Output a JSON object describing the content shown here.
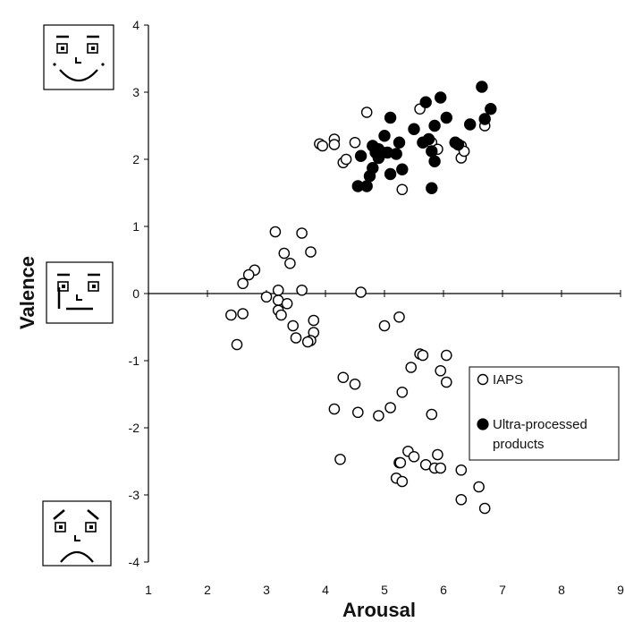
{
  "chart_data": {
    "type": "scatter",
    "xlabel": "Arousal",
    "ylabel": "Valence",
    "xlim": [
      1,
      9
    ],
    "ylim": [
      -4,
      4
    ],
    "x_ticks": [
      "1",
      "2",
      "3",
      "4",
      "5",
      "6",
      "7",
      "8",
      "9"
    ],
    "y_ticks": [
      "4",
      "3",
      "2",
      "1",
      "0",
      "-1",
      "-2",
      "-3",
      "-4"
    ],
    "grid": false,
    "axes_cross_at_zero": true,
    "legend": {
      "placement": "right"
    },
    "face_icons": [
      "happy-face-icon",
      "neutral-face-icon",
      "sad-face-icon"
    ],
    "series": [
      {
        "name": "IAPS",
        "marker": "open-circle",
        "color": "#000000",
        "points": [
          [
            4.7,
            2.7
          ],
          [
            5.6,
            2.75
          ],
          [
            3.9,
            2.23
          ],
          [
            3.95,
            2.2
          ],
          [
            4.15,
            2.3
          ],
          [
            4.15,
            2.22
          ],
          [
            4.3,
            1.95
          ],
          [
            4.35,
            2.0
          ],
          [
            4.5,
            2.25
          ],
          [
            5.0,
            2.1
          ],
          [
            5.3,
            1.55
          ],
          [
            5.8,
            2.25
          ],
          [
            5.9,
            2.15
          ],
          [
            6.3,
            2.2
          ],
          [
            6.3,
            2.02
          ],
          [
            6.35,
            2.12
          ],
          [
            6.7,
            2.5
          ],
          [
            3.15,
            0.92
          ],
          [
            3.6,
            0.9
          ],
          [
            3.3,
            0.6
          ],
          [
            3.75,
            0.62
          ],
          [
            3.4,
            0.45
          ],
          [
            2.8,
            0.35
          ],
          [
            2.7,
            0.28
          ],
          [
            2.6,
            0.15
          ],
          [
            3.2,
            0.05
          ],
          [
            3.6,
            0.05
          ],
          [
            4.6,
            0.02
          ],
          [
            3.0,
            -0.05
          ],
          [
            3.2,
            -0.1
          ],
          [
            3.35,
            -0.15
          ],
          [
            3.2,
            -0.25
          ],
          [
            3.25,
            -0.32
          ],
          [
            2.4,
            -0.32
          ],
          [
            2.6,
            -0.3
          ],
          [
            3.8,
            -0.4
          ],
          [
            5.25,
            -0.35
          ],
          [
            5.0,
            -0.48
          ],
          [
            3.45,
            -0.48
          ],
          [
            3.8,
            -0.58
          ],
          [
            3.5,
            -0.66
          ],
          [
            3.75,
            -0.7
          ],
          [
            3.7,
            -0.72
          ],
          [
            2.5,
            -0.76
          ],
          [
            5.6,
            -0.9
          ],
          [
            5.65,
            -0.92
          ],
          [
            6.05,
            -0.92
          ],
          [
            5.45,
            -1.1
          ],
          [
            5.95,
            -1.15
          ],
          [
            6.05,
            -1.32
          ],
          [
            4.3,
            -1.25
          ],
          [
            4.5,
            -1.35
          ],
          [
            5.3,
            -1.47
          ],
          [
            5.1,
            -1.7
          ],
          [
            4.15,
            -1.72
          ],
          [
            4.55,
            -1.77
          ],
          [
            4.9,
            -1.82
          ],
          [
            5.8,
            -1.8
          ],
          [
            5.4,
            -2.35
          ],
          [
            5.9,
            -2.4
          ],
          [
            5.5,
            -2.43
          ],
          [
            5.25,
            -2.52
          ],
          [
            5.27,
            -2.52
          ],
          [
            5.7,
            -2.55
          ],
          [
            5.85,
            -2.6
          ],
          [
            5.95,
            -2.6
          ],
          [
            6.3,
            -2.63
          ],
          [
            4.25,
            -2.47
          ],
          [
            5.2,
            -2.75
          ],
          [
            5.3,
            -2.8
          ],
          [
            6.6,
            -2.88
          ],
          [
            6.3,
            -3.07
          ],
          [
            6.7,
            -3.2
          ]
        ]
      },
      {
        "name": "Ultra-processed products",
        "marker": "filled-circle",
        "color": "#000000",
        "points": [
          [
            6.65,
            3.08
          ],
          [
            5.95,
            2.92
          ],
          [
            5.7,
            2.85
          ],
          [
            6.8,
            2.75
          ],
          [
            6.05,
            2.62
          ],
          [
            6.7,
            2.6
          ],
          [
            5.1,
            2.62
          ],
          [
            6.45,
            2.52
          ],
          [
            5.85,
            2.5
          ],
          [
            5.5,
            2.45
          ],
          [
            5.0,
            2.35
          ],
          [
            5.25,
            2.25
          ],
          [
            5.65,
            2.25
          ],
          [
            5.75,
            2.3
          ],
          [
            6.2,
            2.25
          ],
          [
            6.25,
            2.22
          ],
          [
            4.8,
            2.2
          ],
          [
            4.9,
            2.15
          ],
          [
            5.05,
            2.1
          ],
          [
            4.85,
            2.1
          ],
          [
            5.2,
            2.08
          ],
          [
            4.6,
            2.05
          ],
          [
            5.8,
            2.12
          ],
          [
            4.9,
            2.02
          ],
          [
            5.85,
            1.97
          ],
          [
            4.8,
            1.87
          ],
          [
            5.3,
            1.85
          ],
          [
            5.1,
            1.78
          ],
          [
            4.75,
            1.75
          ],
          [
            4.55,
            1.6
          ],
          [
            4.7,
            1.6
          ],
          [
            5.8,
            1.57
          ]
        ]
      }
    ]
  }
}
